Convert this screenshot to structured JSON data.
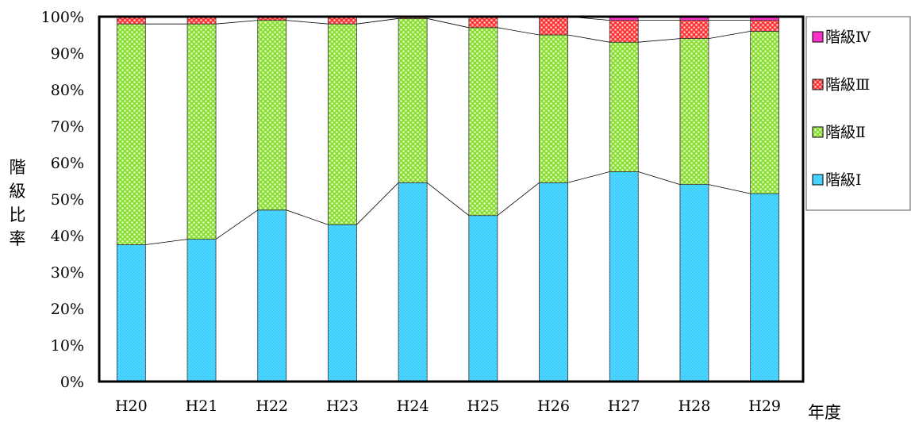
{
  "chart_data": {
    "type": "bar",
    "stacked": true,
    "title": "",
    "xlabel": "年度",
    "ylabel": "階級比率",
    "ylim": [
      0,
      100
    ],
    "yticks": [
      "0%",
      "10%",
      "20%",
      "30%",
      "40%",
      "50%",
      "60%",
      "70%",
      "80%",
      "90%",
      "100%"
    ],
    "categories": [
      "H20",
      "H21",
      "H22",
      "H23",
      "H24",
      "H25",
      "H26",
      "H27",
      "H28",
      "H29"
    ],
    "series": [
      {
        "name": "階級Ⅰ",
        "color": "#33ccff",
        "pattern": "dots-fine",
        "values": [
          37.5,
          39,
          47,
          43,
          54.5,
          45.5,
          54.5,
          57.5,
          54,
          51.5
        ]
      },
      {
        "name": "階級Ⅱ",
        "color": "#99ee44",
        "pattern": "dots-coarse",
        "values": [
          60.5,
          59,
          52,
          55,
          45,
          51.5,
          40.5,
          35.5,
          40,
          44.5
        ]
      },
      {
        "name": "階級Ⅲ",
        "color": "#ff4444",
        "pattern": "dots-red",
        "values": [
          2,
          2,
          1,
          2,
          0.5,
          3,
          5,
          6,
          5,
          3
        ]
      },
      {
        "name": "階級Ⅳ",
        "color": "#ff33cc",
        "pattern": "solid",
        "values": [
          0,
          0,
          0,
          0,
          0,
          0,
          0,
          1,
          1,
          1
        ]
      }
    ],
    "connector_lines": true,
    "legend": "right",
    "grid": false
  }
}
